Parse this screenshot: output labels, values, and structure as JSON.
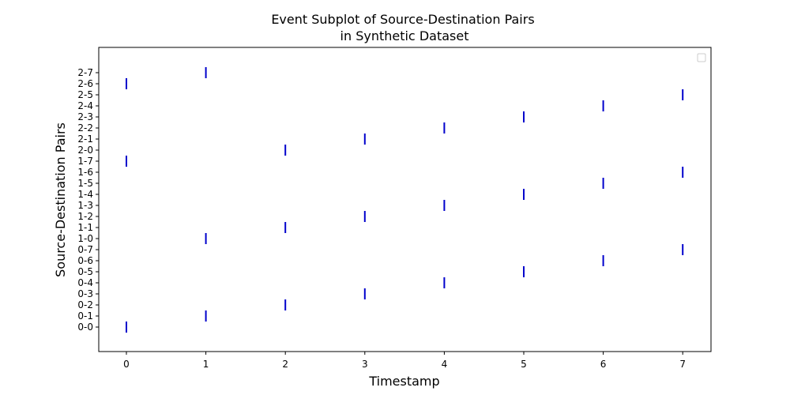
{
  "chart_data": {
    "type": "scatter",
    "title": [
      "Event Subplot of Source-Destination Pairs",
      "in Synthetic Dataset"
    ],
    "xlabel": "Timestamp",
    "ylabel": "Source-Destination Pairs",
    "x_ticks": [
      0,
      1,
      2,
      3,
      4,
      5,
      6,
      7
    ],
    "xlim": [
      -0.35,
      7.35
    ],
    "categories": [
      "0-0",
      "0-1",
      "0-2",
      "0-3",
      "0-4",
      "0-5",
      "0-6",
      "0-7",
      "1-0",
      "1-1",
      "1-2",
      "1-3",
      "1-4",
      "1-5",
      "1-6",
      "1-7",
      "2-0",
      "2-1",
      "2-2",
      "2-3",
      "2-4",
      "2-5",
      "2-6",
      "2-7"
    ],
    "marker": "|",
    "color": "#0000cc",
    "legend": "top-right (empty)",
    "grid": false,
    "events": [
      {
        "x": 0,
        "y": "0-0"
      },
      {
        "x": 1,
        "y": "0-1"
      },
      {
        "x": 2,
        "y": "0-2"
      },
      {
        "x": 3,
        "y": "0-3"
      },
      {
        "x": 4,
        "y": "0-4"
      },
      {
        "x": 5,
        "y": "0-5"
      },
      {
        "x": 6,
        "y": "0-6"
      },
      {
        "x": 7,
        "y": "0-7"
      },
      {
        "x": 1,
        "y": "1-0"
      },
      {
        "x": 2,
        "y": "1-1"
      },
      {
        "x": 3,
        "y": "1-2"
      },
      {
        "x": 4,
        "y": "1-3"
      },
      {
        "x": 5,
        "y": "1-4"
      },
      {
        "x": 6,
        "y": "1-5"
      },
      {
        "x": 7,
        "y": "1-6"
      },
      {
        "x": 0,
        "y": "1-7"
      },
      {
        "x": 2,
        "y": "2-0"
      },
      {
        "x": 3,
        "y": "2-1"
      },
      {
        "x": 4,
        "y": "2-2"
      },
      {
        "x": 5,
        "y": "2-3"
      },
      {
        "x": 6,
        "y": "2-4"
      },
      {
        "x": 7,
        "y": "2-5"
      },
      {
        "x": 0,
        "y": "2-6"
      },
      {
        "x": 1,
        "y": "2-7"
      }
    ]
  }
}
